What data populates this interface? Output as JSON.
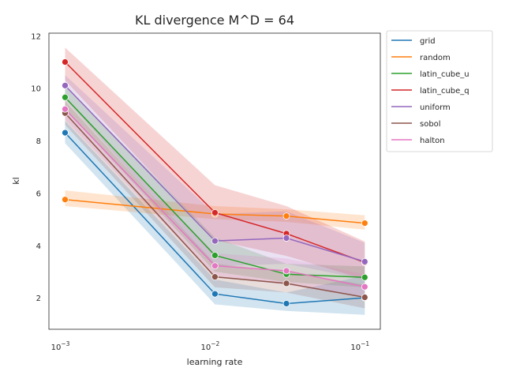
{
  "chart_data": {
    "type": "line",
    "title": "KL divergence M^D = 64",
    "xlabel": "learning rate",
    "ylabel": "kl",
    "xscale": "log",
    "x": [
      0.001,
      0.01,
      0.03,
      0.1
    ],
    "x_tick_values": [
      0.001,
      0.01,
      0.1
    ],
    "x_tick_labels": [
      {
        "base": "10",
        "exp": "−3"
      },
      {
        "base": "10",
        "exp": "−2"
      },
      {
        "base": "10",
        "exp": "−1"
      }
    ],
    "xlim": [
      0.00078,
      0.127
    ],
    "ylim": [
      0.8,
      12.1
    ],
    "y_ticks": [
      2,
      4,
      6,
      8,
      10,
      12
    ],
    "grid": false,
    "legend_position": "outside-right",
    "series": [
      {
        "name": "grid",
        "color": "#1f77b4",
        "values": [
          8.3,
          2.15,
          1.78,
          2.0
        ],
        "lower": [
          7.9,
          1.75,
          1.5,
          1.35
        ],
        "upper": [
          8.75,
          2.7,
          2.2,
          2.85
        ]
      },
      {
        "name": "random",
        "color": "#ff7f0e",
        "values": [
          5.75,
          5.2,
          5.12,
          4.85
        ],
        "lower": [
          5.5,
          5.0,
          4.9,
          4.6
        ],
        "upper": [
          6.1,
          5.5,
          5.38,
          5.15
        ]
      },
      {
        "name": "latin_cube_u",
        "color": "#2ca02c",
        "values": [
          9.65,
          3.62,
          2.9,
          2.78
        ],
        "lower": [
          9.2,
          3.0,
          2.6,
          2.4
        ],
        "upper": [
          10.1,
          4.3,
          3.3,
          3.2
        ]
      },
      {
        "name": "latin_cube_q",
        "color": "#d62728",
        "values": [
          11.0,
          5.25,
          4.45,
          3.35
        ],
        "lower": [
          10.3,
          4.2,
          3.6,
          2.7
        ],
        "upper": [
          11.55,
          6.3,
          5.5,
          4.15
        ]
      },
      {
        "name": "uniform",
        "color": "#9467bd",
        "values": [
          10.1,
          4.17,
          4.28,
          3.38
        ],
        "lower": [
          9.6,
          3.2,
          3.3,
          2.7
        ],
        "upper": [
          10.5,
          5.2,
          5.3,
          4.1
        ]
      },
      {
        "name": "sobol",
        "color": "#8c564b",
        "values": [
          9.05,
          2.8,
          2.55,
          2.02
        ],
        "lower": [
          8.6,
          2.4,
          2.2,
          1.6
        ],
        "upper": [
          9.5,
          3.3,
          3.0,
          2.5
        ]
      },
      {
        "name": "halton",
        "color": "#e377c2",
        "values": [
          9.2,
          3.22,
          3.03,
          2.42
        ],
        "lower": [
          8.8,
          2.8,
          2.5,
          2.0
        ],
        "upper": [
          9.6,
          3.7,
          3.5,
          2.9
        ]
      }
    ]
  }
}
